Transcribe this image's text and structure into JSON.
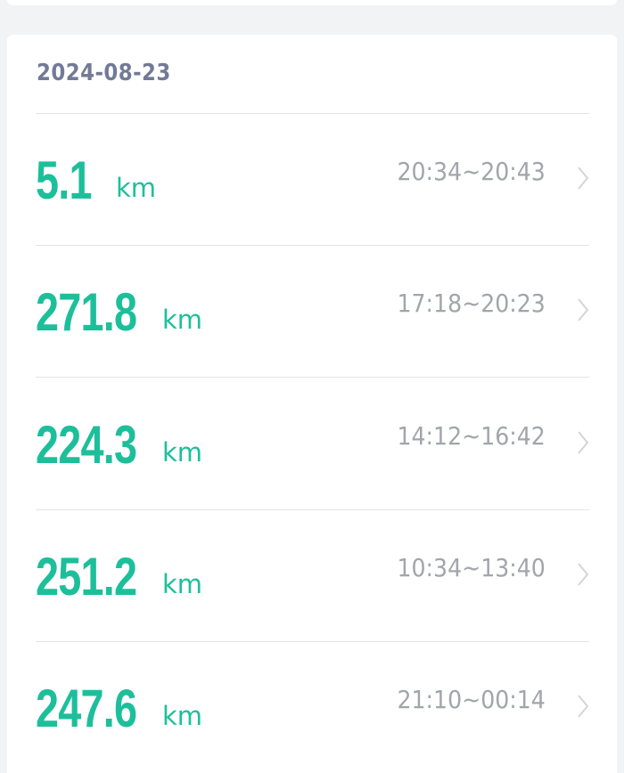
{
  "date": "2024-08-23",
  "colors": {
    "accent": "#1dbf9b",
    "date": "#727a96",
    "time": "#a2a5aa"
  },
  "trips": [
    {
      "distance": "5.1",
      "unit": "km",
      "time": "20:34~20:43"
    },
    {
      "distance": "271.8",
      "unit": "km",
      "time": "17:18~20:23"
    },
    {
      "distance": "224.3",
      "unit": "km",
      "time": "14:12~16:42"
    },
    {
      "distance": "251.2",
      "unit": "km",
      "time": "10:34~13:40"
    },
    {
      "distance": "247.6",
      "unit": "km",
      "time": "21:10~00:14"
    }
  ]
}
